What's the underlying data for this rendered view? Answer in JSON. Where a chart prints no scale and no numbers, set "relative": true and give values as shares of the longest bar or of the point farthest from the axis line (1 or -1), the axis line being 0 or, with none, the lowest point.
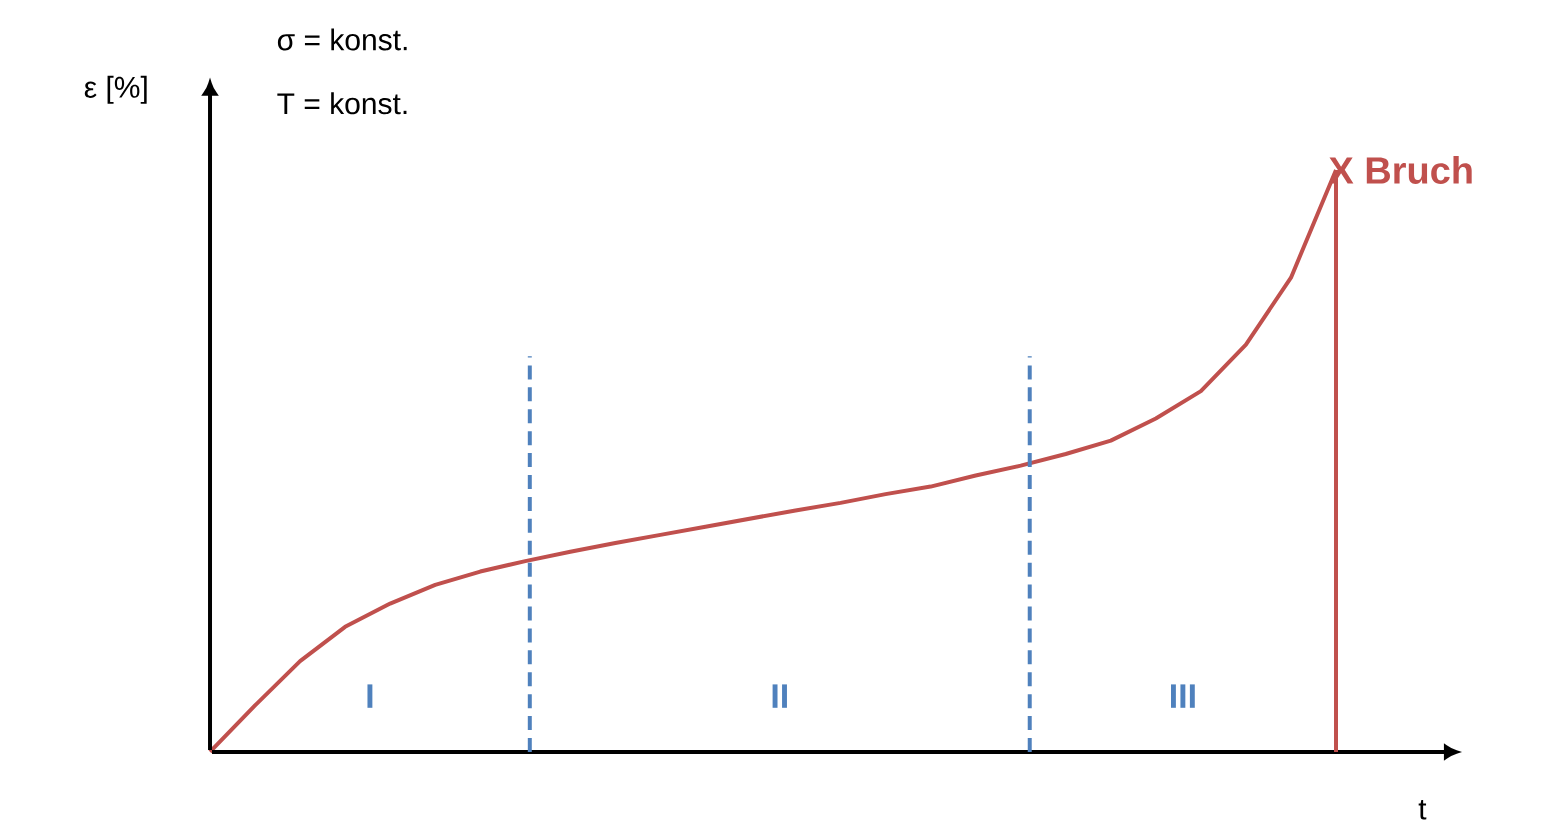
{
  "chart_data": {
    "type": "line",
    "relative": true,
    "xlabel": "t",
    "ylabel": "ε [%]",
    "categories": [
      null,
      null,
      null,
      null,
      null,
      null,
      null,
      null,
      null,
      null,
      null,
      null,
      null,
      null,
      null,
      null,
      null,
      null,
      null,
      null,
      null,
      null,
      null,
      null,
      null,
      null
    ],
    "series": [
      {
        "color": "#c0504d",
        "values": [
          0,
          0.08,
          0.156,
          0.215,
          0.255,
          0.287,
          0.31,
          0.328,
          0.344,
          0.359,
          0.373,
          0.387,
          0.401,
          0.415,
          0.428,
          0.443,
          0.456,
          0.475,
          0.492,
          0.512,
          0.535,
          0.573,
          0.62,
          0.7,
          0.815,
          1.0
        ]
      }
    ],
    "annotations": [
      "σ = konst.",
      "T = konst.",
      "X Bruch",
      "I",
      "II",
      "III"
    ],
    "marker": "none",
    "line_style": "solid"
  }
}
